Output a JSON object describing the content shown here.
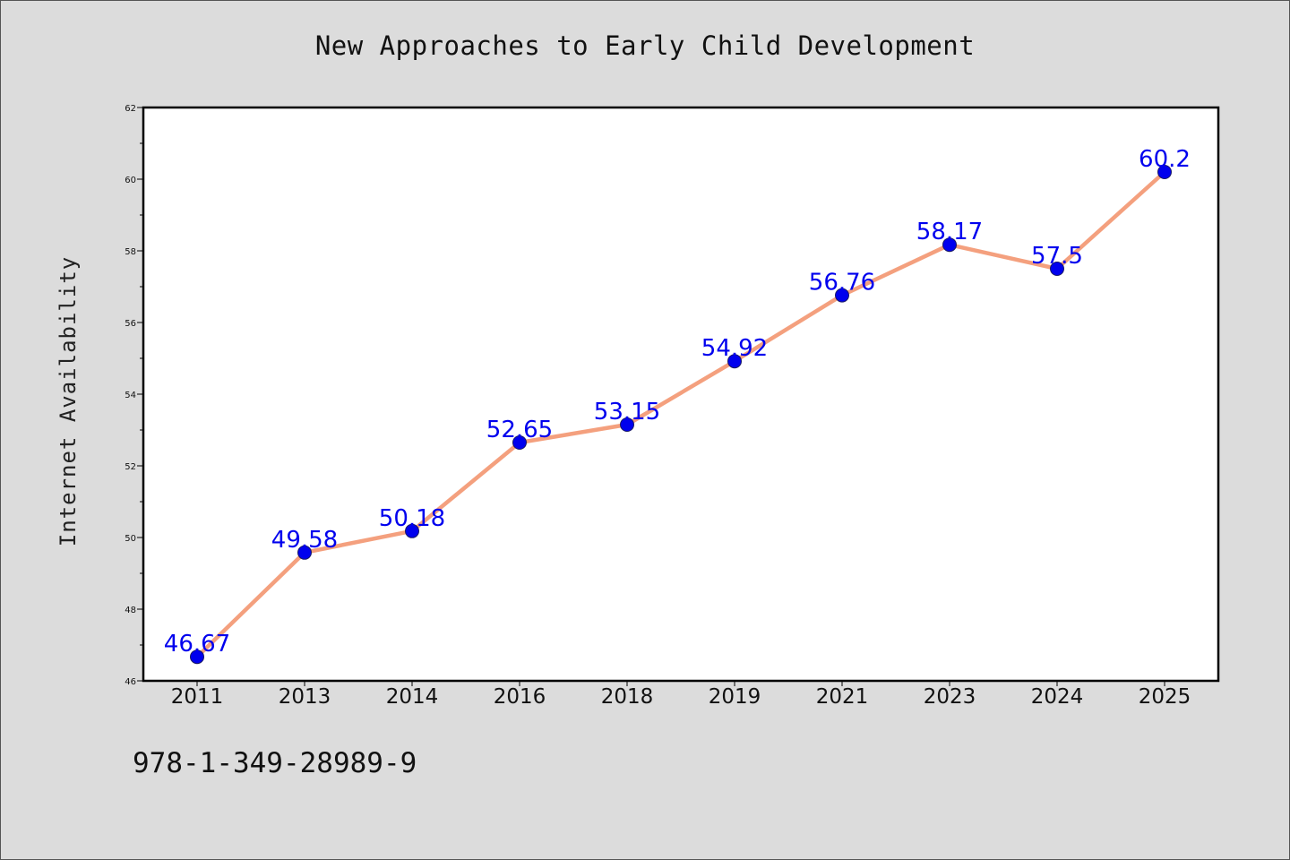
{
  "chart_data": {
    "type": "line",
    "title": "New Approaches to Early Child Development",
    "xlabel": "",
    "ylabel": "Internet Availability",
    "categories": [
      "2011",
      "2013",
      "2014",
      "2016",
      "2018",
      "2019",
      "2021",
      "2023",
      "2024",
      "2025"
    ],
    "series": [
      {
        "values": [
          46.67,
          49.58,
          50.18,
          52.65,
          53.15,
          54.92,
          56.76,
          58.17,
          57.5,
          60.2
        ]
      }
    ],
    "data_labels": [
      "46.67",
      "49.58",
      "50.18",
      "52.65",
      "53.15",
      "54.92",
      "56.76",
      "58.17",
      "57.5",
      "60.2"
    ],
    "ylim": [
      46,
      62
    ],
    "y_ticks": [
      "46",
      "48",
      "50",
      "52",
      "54",
      "56",
      "58",
      "60",
      "62"
    ],
    "grid": false,
    "legend": "none",
    "colors": {
      "line": "#f4a07e",
      "marker": "#0000ee",
      "label": "#0000ee",
      "plot_background": "#ffffff",
      "page_background": "#dcdcdc"
    }
  },
  "footer": {
    "code": "978-1-349-28989-9"
  }
}
